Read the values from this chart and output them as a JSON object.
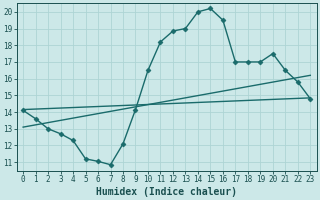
{
  "line1_x": [
    0,
    1,
    2,
    3,
    4,
    5,
    6,
    7,
    8,
    9,
    10,
    11,
    12,
    13,
    14,
    15,
    16,
    17,
    18,
    19,
    20,
    21,
    22,
    23
  ],
  "line1_y": [
    14.1,
    13.6,
    13.0,
    12.7,
    12.3,
    11.2,
    11.05,
    10.85,
    12.1,
    14.15,
    16.5,
    18.2,
    18.85,
    19.0,
    20.0,
    20.2,
    19.5,
    17.0,
    17.0,
    17.0,
    17.5,
    16.5,
    15.8,
    14.8
  ],
  "line2_x": [
    0,
    23
  ],
  "line2_y": [
    13.1,
    16.2
  ],
  "line3_x": [
    0,
    23
  ],
  "line3_y": [
    14.15,
    14.85
  ],
  "line_color": "#1a6b6b",
  "bg_color": "#cce8e8",
  "grid_color": "#aed4d4",
  "xlabel": "Humidex (Indice chaleur)",
  "ylim": [
    10.5,
    20.5
  ],
  "xlim": [
    -0.5,
    23.5
  ],
  "yticks": [
    11,
    12,
    13,
    14,
    15,
    16,
    17,
    18,
    19,
    20
  ],
  "xticks": [
    0,
    1,
    2,
    3,
    4,
    5,
    6,
    7,
    8,
    9,
    10,
    11,
    12,
    13,
    14,
    15,
    16,
    17,
    18,
    19,
    20,
    21,
    22,
    23
  ],
  "xtick_labels": [
    "0",
    "1",
    "2",
    "3",
    "4",
    "5",
    "6",
    "7",
    "8",
    "9",
    "10",
    "11",
    "12",
    "13",
    "14",
    "15",
    "16",
    "17",
    "18",
    "19",
    "20",
    "21",
    "22",
    "23"
  ],
  "marker": "D",
  "markersize": 2.5,
  "linewidth": 1.0,
  "font_color": "#1a5050",
  "xlabel_fontsize": 7,
  "tick_fontsize": 5.5,
  "title_color": "#1a5050"
}
